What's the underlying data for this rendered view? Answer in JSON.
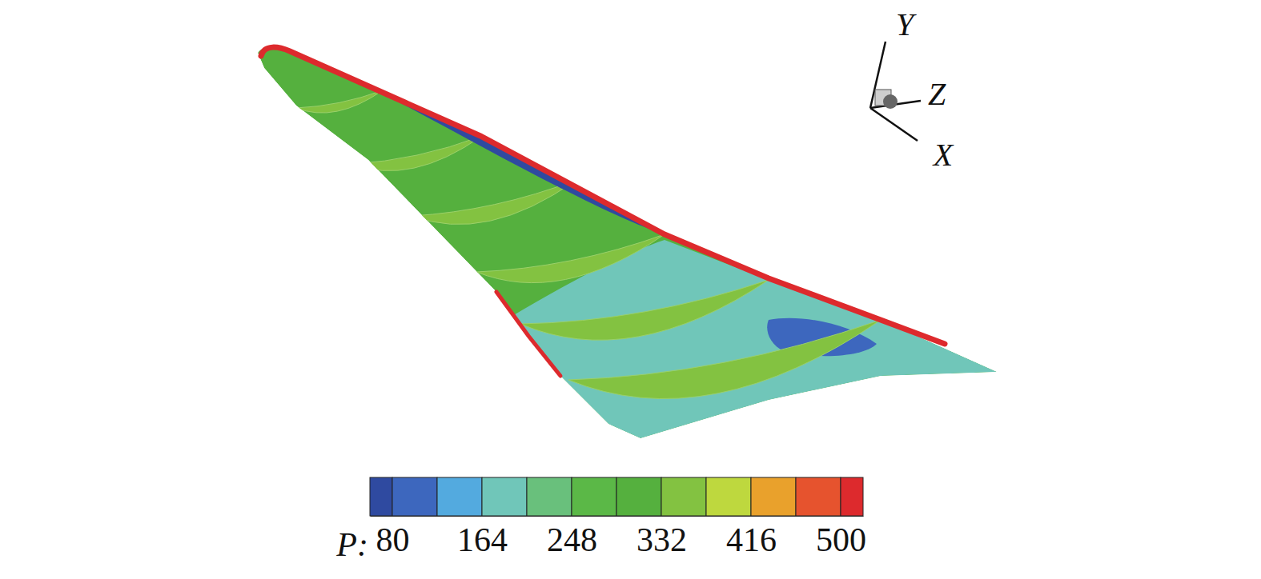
{
  "chart_data": {
    "type": "contour",
    "colorbar": {
      "label": "P:",
      "range": [
        59,
        521
      ],
      "ticks": [
        80,
        164,
        248,
        332,
        416,
        500
      ],
      "levels": [
        59,
        80,
        122,
        164,
        206,
        248,
        290,
        332,
        374,
        416,
        458,
        500,
        521
      ],
      "colors": [
        "#2f4aa0",
        "#3d67be",
        "#53aadf",
        "#70c6b9",
        "#69c07c",
        "#5bb847",
        "#55b03e",
        "#83c241",
        "#bed83e",
        "#e9a12c",
        "#e6532e",
        "#dd2a2d"
      ]
    },
    "axes_labels": [
      "Y",
      "Z",
      "X"
    ],
    "surface_values": [
      310,
      190,
      100,
      350,
      350,
      350,
      350,
      350,
      350,
      70,
      510,
      510
    ]
  }
}
